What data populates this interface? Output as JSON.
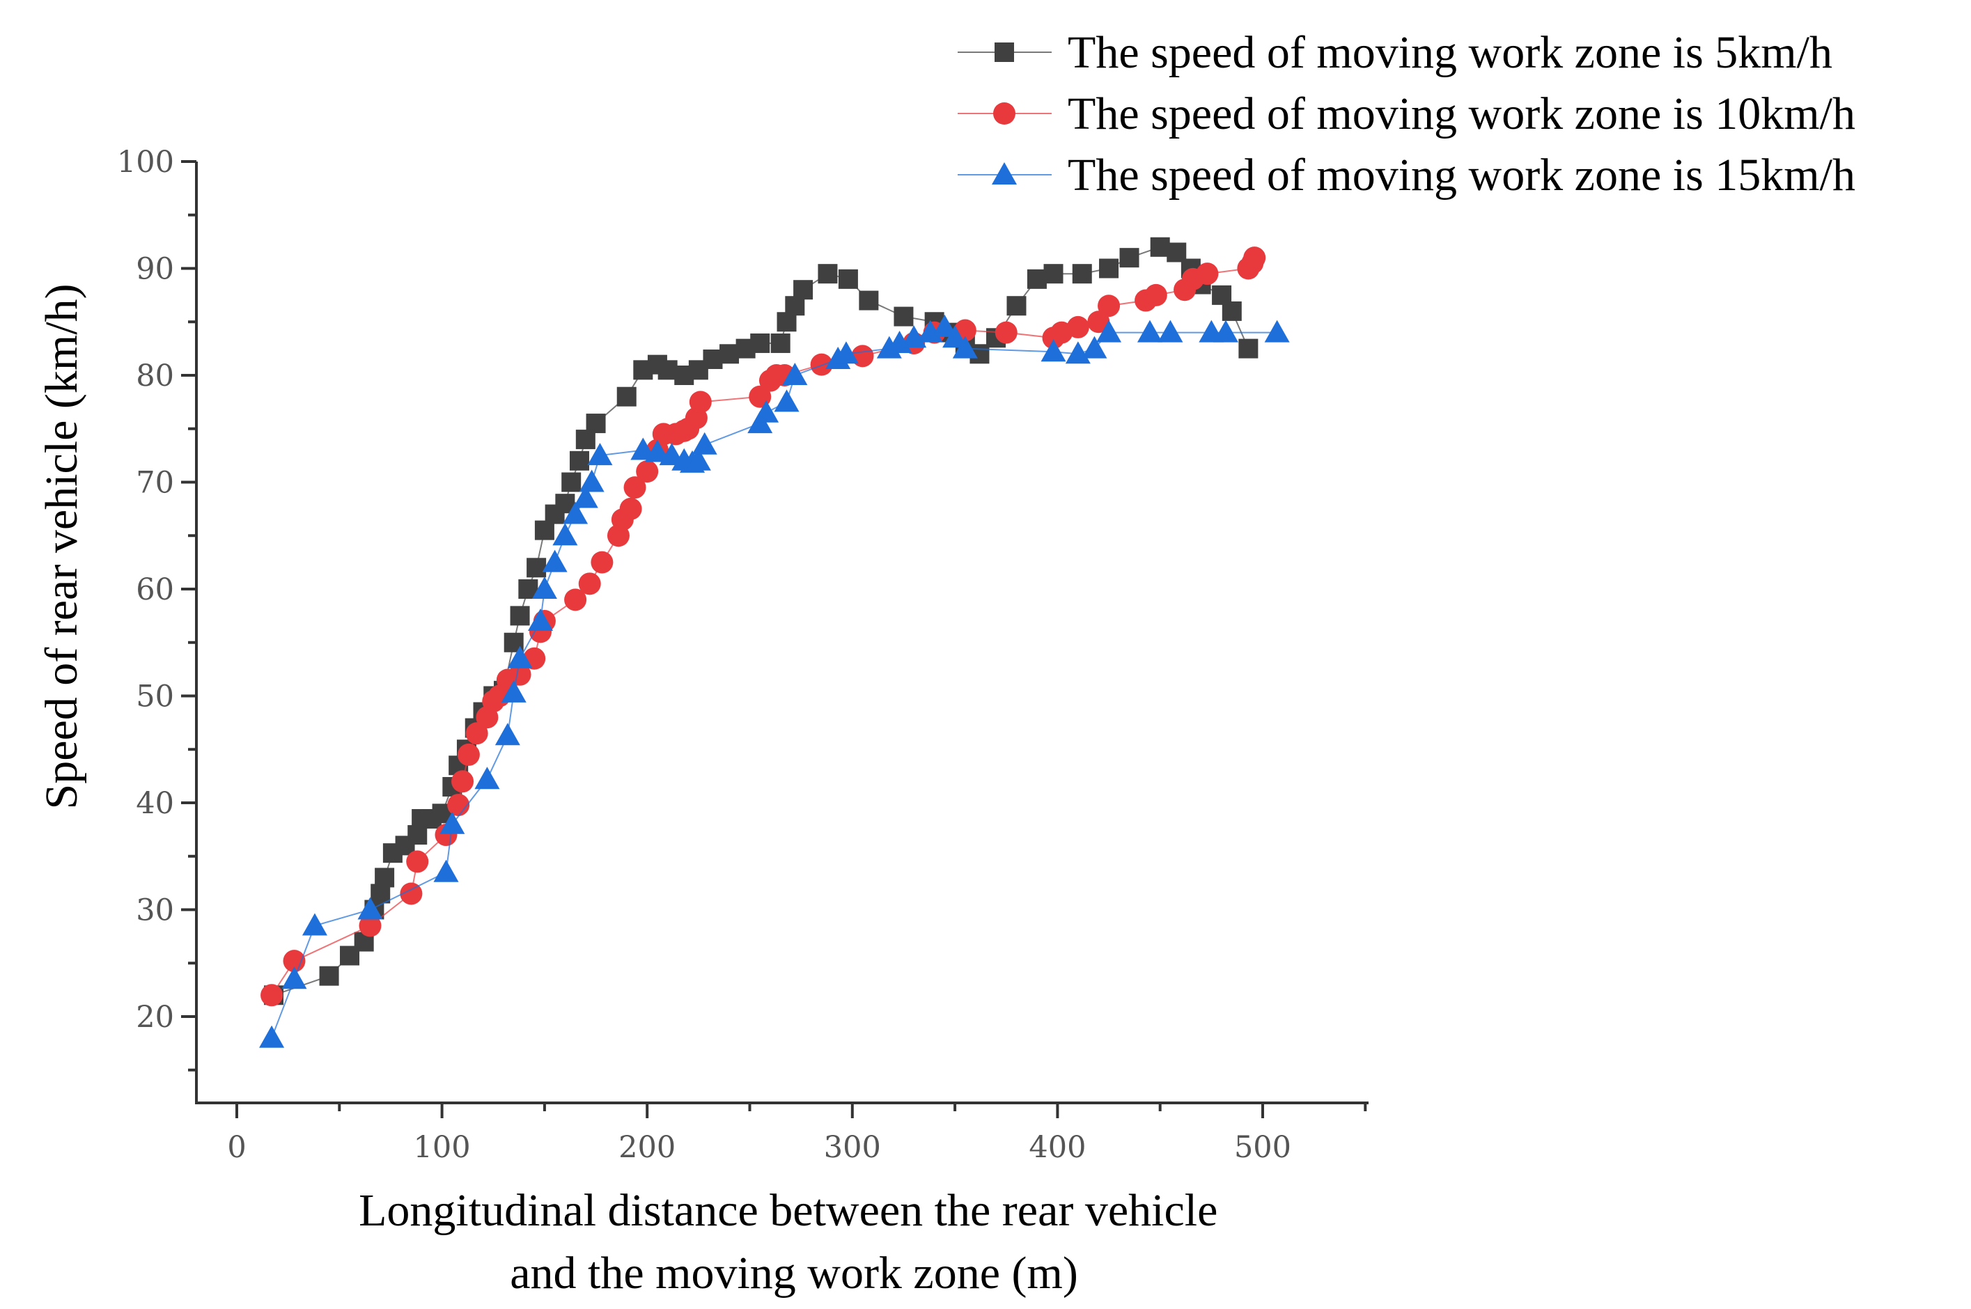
{
  "chart_data": {
    "type": "line",
    "title": "",
    "xlabel_lines": [
      "Longitudinal distance between the rear vehicle",
      "and the moving work zone (m)"
    ],
    "ylabel": "Speed of rear vehicle (km/h)",
    "xlim": [
      -20,
      550
    ],
    "ylim": [
      12,
      100
    ],
    "xticks": [
      0,
      100,
      200,
      300,
      400,
      500
    ],
    "yticks": [
      20,
      30,
      40,
      50,
      60,
      70,
      80,
      90,
      100
    ],
    "legend_position": "top-right",
    "series": [
      {
        "name": "The speed of moving work zone is 5km/h",
        "color": "#404040",
        "marker": "square",
        "points": [
          [
            18,
            22
          ],
          [
            45,
            23.8
          ],
          [
            55,
            25.7
          ],
          [
            62,
            27
          ],
          [
            67,
            30
          ],
          [
            70,
            31.5
          ],
          [
            72,
            33
          ],
          [
            76,
            35.3
          ],
          [
            82,
            36
          ],
          [
            88,
            37
          ],
          [
            90,
            38.5
          ],
          [
            95,
            38.5
          ],
          [
            100,
            39
          ],
          [
            105,
            41.5
          ],
          [
            108,
            43.5
          ],
          [
            112,
            45
          ],
          [
            116,
            47
          ],
          [
            120,
            48.5
          ],
          [
            125,
            50
          ],
          [
            130,
            50.5
          ],
          [
            135,
            55
          ],
          [
            138,
            57.5
          ],
          [
            142,
            60
          ],
          [
            146,
            62
          ],
          [
            150,
            65.5
          ],
          [
            155,
            67
          ],
          [
            160,
            68
          ],
          [
            163,
            70
          ],
          [
            167,
            72
          ],
          [
            170,
            74
          ],
          [
            175,
            75.5
          ],
          [
            190,
            78
          ],
          [
            198,
            80.5
          ],
          [
            205,
            81
          ],
          [
            210,
            80.5
          ],
          [
            218,
            80
          ],
          [
            225,
            80.5
          ],
          [
            232,
            81.5
          ],
          [
            240,
            82
          ],
          [
            248,
            82.5
          ],
          [
            255,
            83
          ],
          [
            265,
            83
          ],
          [
            268,
            85
          ],
          [
            272,
            86.5
          ],
          [
            276,
            88
          ],
          [
            288,
            89.5
          ],
          [
            298,
            89
          ],
          [
            308,
            87
          ],
          [
            325,
            85.5
          ],
          [
            340,
            85
          ],
          [
            348,
            84
          ],
          [
            355,
            83
          ],
          [
            362,
            82
          ],
          [
            370,
            83.5
          ],
          [
            380,
            86.5
          ],
          [
            390,
            89
          ],
          [
            398,
            89.5
          ],
          [
            412,
            89.5
          ],
          [
            425,
            90
          ],
          [
            435,
            91
          ],
          [
            450,
            92
          ],
          [
            458,
            91.5
          ],
          [
            465,
            90
          ],
          [
            470,
            88.5
          ],
          [
            480,
            87.5
          ],
          [
            485,
            86
          ],
          [
            493,
            82.5
          ]
        ]
      },
      {
        "name": "The speed of moving work zone is 10km/h",
        "color": "#e8393d",
        "marker": "circle",
        "points": [
          [
            17,
            22
          ],
          [
            28,
            25.2
          ],
          [
            65,
            28.5
          ],
          [
            85,
            31.5
          ],
          [
            88,
            34.5
          ],
          [
            102,
            37
          ],
          [
            108,
            39.8
          ],
          [
            110,
            42
          ],
          [
            113,
            44.5
          ],
          [
            117,
            46.5
          ],
          [
            122,
            48
          ],
          [
            125,
            49.5
          ],
          [
            128,
            50
          ],
          [
            132,
            51.5
          ],
          [
            138,
            52
          ],
          [
            145,
            53.5
          ],
          [
            148,
            56
          ],
          [
            150,
            57
          ],
          [
            165,
            59
          ],
          [
            172,
            60.5
          ],
          [
            178,
            62.5
          ],
          [
            186,
            65
          ],
          [
            188,
            66.5
          ],
          [
            192,
            67.5
          ],
          [
            194,
            69.5
          ],
          [
            200,
            71
          ],
          [
            205,
            73
          ],
          [
            208,
            74.5
          ],
          [
            214,
            74.5
          ],
          [
            218,
            74.8
          ],
          [
            220,
            75
          ],
          [
            224,
            76
          ],
          [
            226,
            77.5
          ],
          [
            255,
            78
          ],
          [
            260,
            79.5
          ],
          [
            263,
            80
          ],
          [
            267,
            80
          ],
          [
            285,
            81
          ],
          [
            305,
            81.8
          ],
          [
            330,
            83
          ],
          [
            340,
            84
          ],
          [
            355,
            84.2
          ],
          [
            375,
            84
          ],
          [
            398,
            83.5
          ],
          [
            402,
            84
          ],
          [
            410,
            84.5
          ],
          [
            420,
            85
          ],
          [
            425,
            86.5
          ],
          [
            443,
            87
          ],
          [
            448,
            87.5
          ],
          [
            462,
            88
          ],
          [
            466,
            89
          ],
          [
            473,
            89.5
          ],
          [
            493,
            90
          ],
          [
            495,
            90.5
          ],
          [
            496,
            91
          ]
        ]
      },
      {
        "name": "The speed of moving work zone is 15km/h",
        "color": "#1e6fd9",
        "marker": "triangle",
        "points": [
          [
            17,
            18
          ],
          [
            28,
            23.5
          ],
          [
            38,
            28.5
          ],
          [
            65,
            30
          ],
          [
            102,
            33.5
          ],
          [
            105,
            38
          ],
          [
            122,
            42.2
          ],
          [
            132,
            46.3
          ],
          [
            135,
            50.3
          ],
          [
            138,
            53.5
          ],
          [
            148,
            57
          ],
          [
            150,
            60
          ],
          [
            155,
            62.5
          ],
          [
            160,
            65
          ],
          [
            165,
            67
          ],
          [
            170,
            68.5
          ],
          [
            173,
            70
          ],
          [
            177,
            72.5
          ],
          [
            198,
            73
          ],
          [
            205,
            72.8
          ],
          [
            212,
            72.5
          ],
          [
            218,
            72
          ],
          [
            222,
            71.8
          ],
          [
            225,
            72
          ],
          [
            228,
            73.5
          ],
          [
            255,
            75.5
          ],
          [
            258,
            76.5
          ],
          [
            268,
            77.5
          ],
          [
            272,
            80
          ],
          [
            293,
            81.5
          ],
          [
            297,
            82
          ],
          [
            318,
            82.5
          ],
          [
            323,
            83
          ],
          [
            330,
            83.5
          ],
          [
            338,
            84
          ],
          [
            345,
            84.5
          ],
          [
            350,
            83.5
          ],
          [
            355,
            82.5
          ],
          [
            398,
            82.2
          ],
          [
            410,
            82
          ],
          [
            418,
            82.5
          ],
          [
            425,
            84
          ],
          [
            445,
            84
          ],
          [
            455,
            84
          ],
          [
            475,
            84
          ],
          [
            482,
            84
          ],
          [
            507,
            84
          ]
        ]
      }
    ]
  }
}
